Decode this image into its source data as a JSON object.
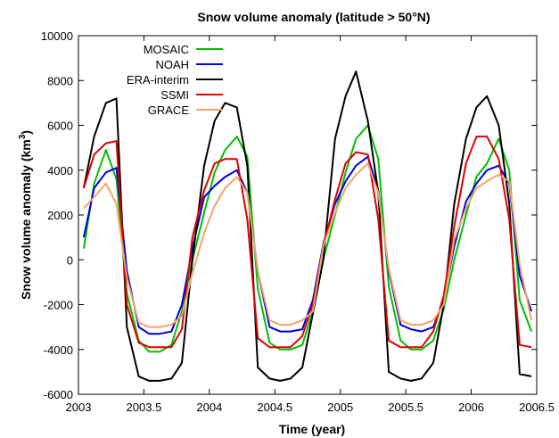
{
  "chart_data": {
    "type": "line",
    "title": "Snow volume anomaly (latitude > 50°N)",
    "xlabel": "Time (year)",
    "ylabel_main": "Snow volume anomaly (km",
    "ylabel_sup": "3",
    "ylabel_close": ")",
    "xlim": [
      2003,
      2006.5
    ],
    "ylim": [
      -6000,
      10000
    ],
    "xticks": [
      "2003",
      "2003.5",
      "2004",
      "2004.5",
      "2005",
      "2005.5",
      "2006",
      "2006.5"
    ],
    "xtick_values": [
      2003,
      2003.5,
      2004,
      2004.5,
      2005,
      2005.5,
      2006,
      2006.5
    ],
    "yticks": [
      "-6000",
      "-4000",
      "-2000",
      "0",
      "2000",
      "4000",
      "6000",
      "8000",
      "10000"
    ],
    "ytick_values": [
      -6000,
      -4000,
      -2000,
      0,
      2000,
      4000,
      6000,
      8000,
      10000
    ],
    "legend_position": "top-left",
    "grid": false,
    "x": [
      2003.04,
      2003.12,
      2003.21,
      2003.29,
      2003.37,
      2003.46,
      2003.54,
      2003.62,
      2003.71,
      2003.79,
      2003.87,
      2003.96,
      2004.04,
      2004.12,
      2004.21,
      2004.29,
      2004.37,
      2004.46,
      2004.54,
      2004.62,
      2004.71,
      2004.79,
      2004.87,
      2004.96,
      2005.04,
      2005.12,
      2005.21,
      2005.29,
      2005.37,
      2005.46,
      2005.54,
      2005.62,
      2005.71,
      2005.79,
      2005.87,
      2005.96,
      2006.04,
      2006.12,
      2006.21,
      2006.29,
      2006.37,
      2006.46
    ],
    "series": [
      {
        "name": "MOSAIC",
        "color": "#00c000",
        "values": [
          500,
          3400,
          4900,
          3600,
          -1500,
          -3600,
          -4100,
          -4100,
          -3800,
          -2300,
          0,
          2100,
          3900,
          4900,
          5500,
          4600,
          -1300,
          -3700,
          -4000,
          -4000,
          -3800,
          -2300,
          0,
          2000,
          3900,
          5400,
          6000,
          4500,
          -1200,
          -3600,
          -4000,
          -4000,
          -3600,
          -2200,
          0,
          2000,
          3700,
          4300,
          5400,
          4000,
          -1800,
          -3200
        ]
      },
      {
        "name": "NOAH",
        "color": "#0000e0",
        "values": [
          1000,
          3200,
          3900,
          4100,
          -500,
          -3000,
          -3300,
          -3300,
          -3200,
          -2000,
          500,
          2800,
          3300,
          3700,
          4000,
          3000,
          -500,
          -3000,
          -3200,
          -3200,
          -3100,
          -1800,
          700,
          2500,
          3500,
          4200,
          4600,
          3100,
          -500,
          -2900,
          -3100,
          -3200,
          -3000,
          -1800,
          600,
          2600,
          3400,
          4000,
          4200,
          3400,
          -700,
          -2300
        ]
      },
      {
        "name": "ERA-interim",
        "color": "#000000",
        "values": [
          3200,
          5500,
          7000,
          7200,
          -3000,
          -5200,
          -5400,
          -5400,
          -5300,
          -4600,
          0,
          4200,
          6200,
          7000,
          6800,
          4200,
          -4800,
          -5300,
          -5400,
          -5300,
          -4800,
          -2400,
          0,
          5400,
          7300,
          8400,
          6200,
          3000,
          -5000,
          -5300,
          -5400,
          -5300,
          -4600,
          -2000,
          2500,
          5400,
          6800,
          7300,
          6000,
          2500,
          -5100,
          -5200
        ]
      },
      {
        "name": "SSMI",
        "color": "#e00000",
        "values": [
          3200,
          4700,
          5200,
          5300,
          -2000,
          -3700,
          -3900,
          -3900,
          -3900,
          -3100,
          1000,
          3100,
          4300,
          4500,
          4500,
          1800,
          -3500,
          -3900,
          -3900,
          -3900,
          -3400,
          -2000,
          600,
          2700,
          4300,
          4800,
          4700,
          1800,
          -3600,
          -3900,
          -3900,
          -3900,
          -3200,
          -1600,
          1500,
          4300,
          5500,
          5500,
          4500,
          1800,
          -3800,
          -3900
        ]
      },
      {
        "name": "GRACE",
        "color": "#f4a46a",
        "values": [
          2300,
          2800,
          3400,
          2500,
          -800,
          -2800,
          -3000,
          -3000,
          -2900,
          -2500,
          -600,
          1200,
          2400,
          3200,
          3700,
          3000,
          -500,
          -2700,
          -2900,
          -2900,
          -2700,
          -2300,
          600,
          2100,
          3200,
          3800,
          4300,
          3000,
          -400,
          -2700,
          -2900,
          -2900,
          -2700,
          -2000,
          900,
          2300,
          3200,
          3500,
          3800,
          3500,
          -200,
          -2700
        ]
      }
    ]
  }
}
